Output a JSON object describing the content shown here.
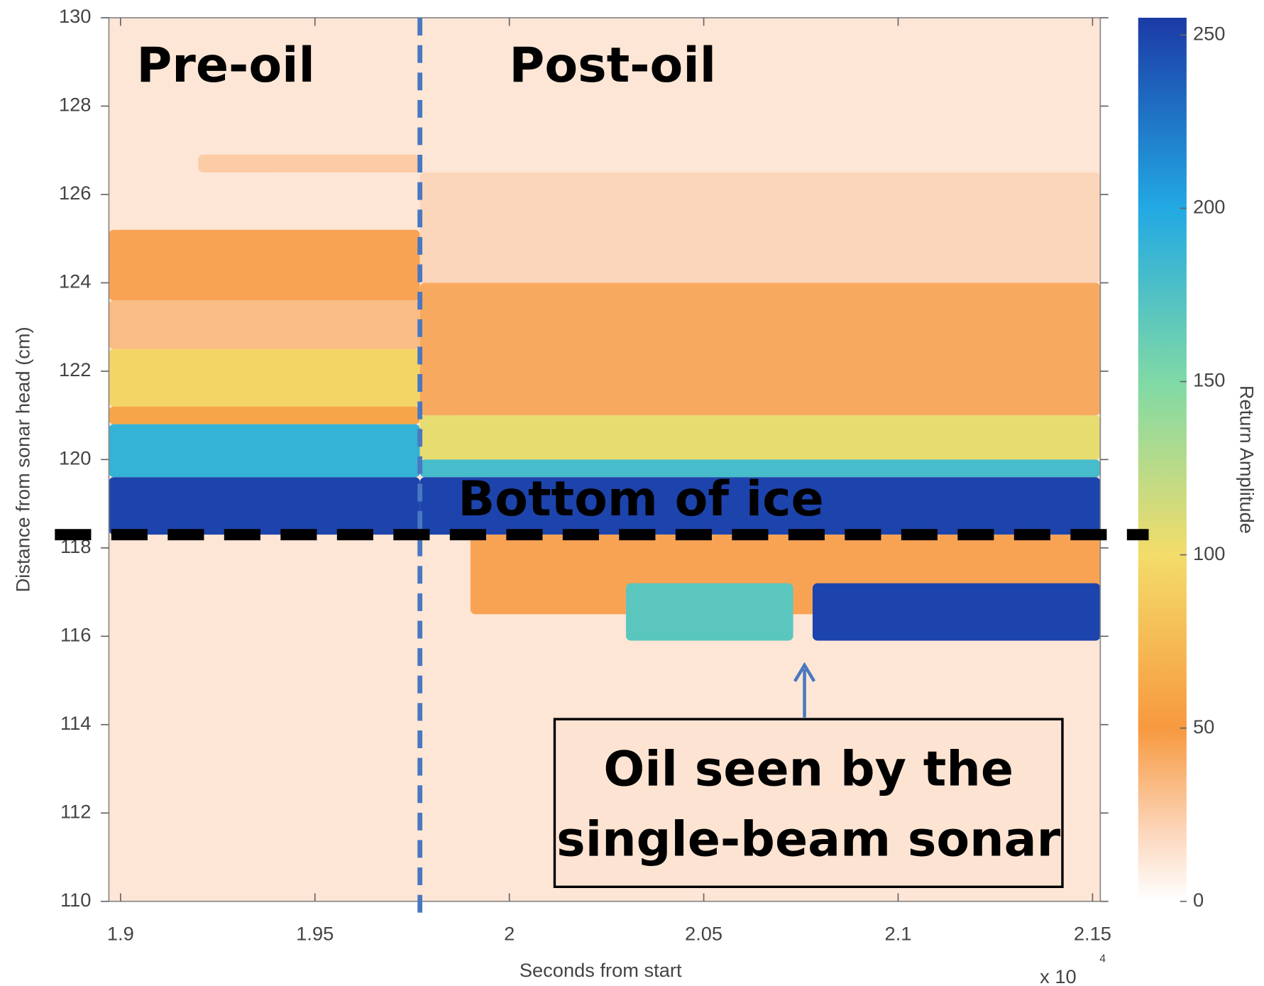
{
  "chart_data": {
    "type": "heatmap",
    "x_label": "Seconds from start",
    "y_label": "Distance from sonar head (cm)",
    "x_multiplier": "x 10",
    "x_multiplier_exponent": "4",
    "xlim": [
      1.897,
      2.152
    ],
    "xticks": [
      1.9,
      1.95,
      2,
      2.05,
      2.1,
      2.15
    ],
    "ylim": [
      110,
      130
    ],
    "yticks": [
      110,
      112,
      114,
      116,
      118,
      120,
      122,
      124,
      126,
      128,
      130
    ],
    "colorbar_label": "Return Amplitude",
    "clim": [
      0,
      255
    ],
    "cticks": [
      0,
      50,
      100,
      150,
      200,
      250
    ],
    "colorscale": [
      {
        "value": 0,
        "color": "#ffffff"
      },
      {
        "value": 20,
        "color": "#fcd6bb"
      },
      {
        "value": 50,
        "color": "#f7993f"
      },
      {
        "value": 100,
        "color": "#f3dc6a"
      },
      {
        "value": 150,
        "color": "#7fd9a6"
      },
      {
        "value": 200,
        "color": "#22a9e3"
      },
      {
        "value": 255,
        "color": "#1c3aa6"
      }
    ],
    "regions": [
      {
        "x": [
          1.897,
          2.152
        ],
        "y": [
          110,
          130
        ],
        "value": 12
      },
      {
        "x": [
          1.92,
          1.977
        ],
        "y": [
          126.5,
          126.9
        ],
        "value": 25
      },
      {
        "x": [
          1.897,
          1.977
        ],
        "y": [
          123.6,
          125.2
        ],
        "value": 45
      },
      {
        "x": [
          1.897,
          1.977
        ],
        "y": [
          122.5,
          123.6
        ],
        "value": 33
      },
      {
        "x": [
          1.897,
          1.977
        ],
        "y": [
          121.2,
          122.5
        ],
        "value": 95
      },
      {
        "x": [
          1.897,
          1.977
        ],
        "y": [
          120.8,
          121.2
        ],
        "value": 60
      },
      {
        "x": [
          1.897,
          1.977
        ],
        "y": [
          119.6,
          120.8
        ],
        "value": 190
      },
      {
        "x": [
          1.897,
          1.977
        ],
        "y": [
          118.3,
          119.6
        ],
        "value": 250
      },
      {
        "x": [
          1.977,
          2.152
        ],
        "y": [
          124,
          126.5
        ],
        "value": 20
      },
      {
        "x": [
          1.977,
          2.152
        ],
        "y": [
          121,
          124
        ],
        "value": 42
      },
      {
        "x": [
          1.977,
          2.152
        ],
        "y": [
          120,
          121
        ],
        "value": 105
      },
      {
        "x": [
          1.977,
          2.152
        ],
        "y": [
          119.6,
          120
        ],
        "value": 180
      },
      {
        "x": [
          1.977,
          2.152
        ],
        "y": [
          118.3,
          119.6
        ],
        "value": 250
      },
      {
        "x": [
          1.99,
          2.152
        ],
        "y": [
          116.5,
          118.3
        ],
        "value": 45
      },
      {
        "x": [
          2.03,
          2.073
        ],
        "y": [
          115.9,
          117.2
        ],
        "value": 170
      },
      {
        "x": [
          2.078,
          2.152
        ],
        "y": [
          115.9,
          117.2
        ],
        "value": 250
      }
    ],
    "oil_onset_x": 1.977,
    "ice_bottom_y": 118.3,
    "annotations": {
      "pre_oil": "Pre-oil",
      "post_oil": "Post-oil",
      "ice_bottom": "Bottom of ice",
      "oil_note": [
        "Oil seen by the",
        "single-beam sonar"
      ]
    }
  }
}
